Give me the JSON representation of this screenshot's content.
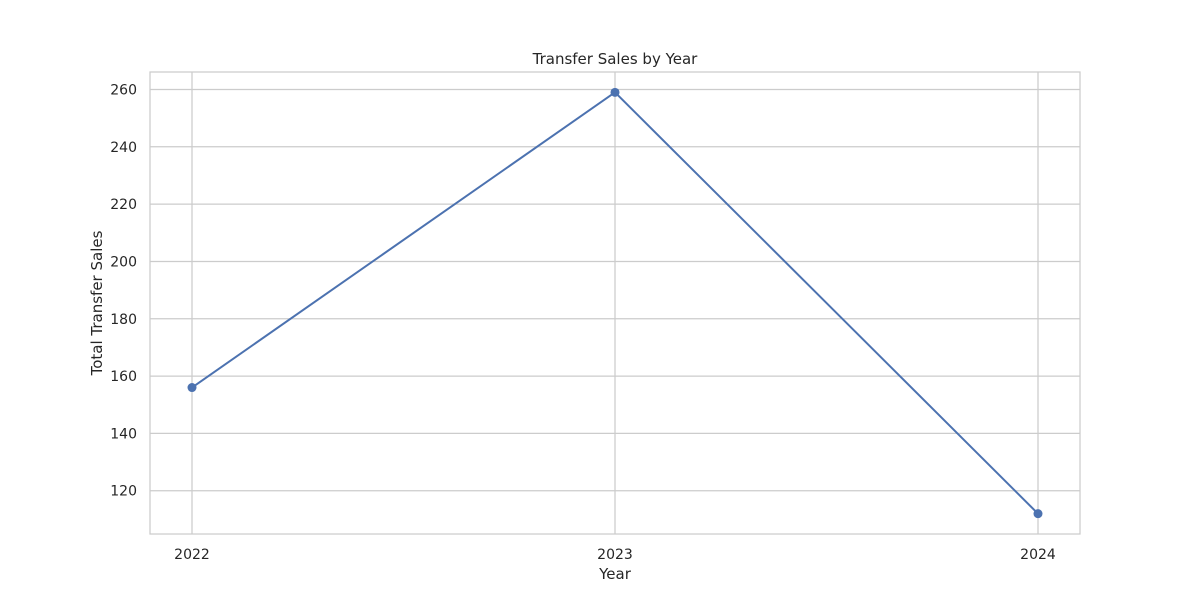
{
  "chart_data": {
    "type": "line",
    "title": "Transfer Sales by Year",
    "xlabel": "Year",
    "ylabel": "Total Transfer Sales",
    "categories": [
      "2022",
      "2023",
      "2024"
    ],
    "series": [
      {
        "values": [
          156,
          259,
          112
        ],
        "color": "#4c72b0"
      }
    ],
    "ylim": [
      104.9,
      266.1
    ],
    "yticks": [
      120,
      140,
      160,
      180,
      200,
      220,
      240,
      260
    ],
    "grid": true,
    "colors": {
      "grid": "#cccccc",
      "frame": "#cccccc",
      "background": "#ffffff"
    }
  }
}
